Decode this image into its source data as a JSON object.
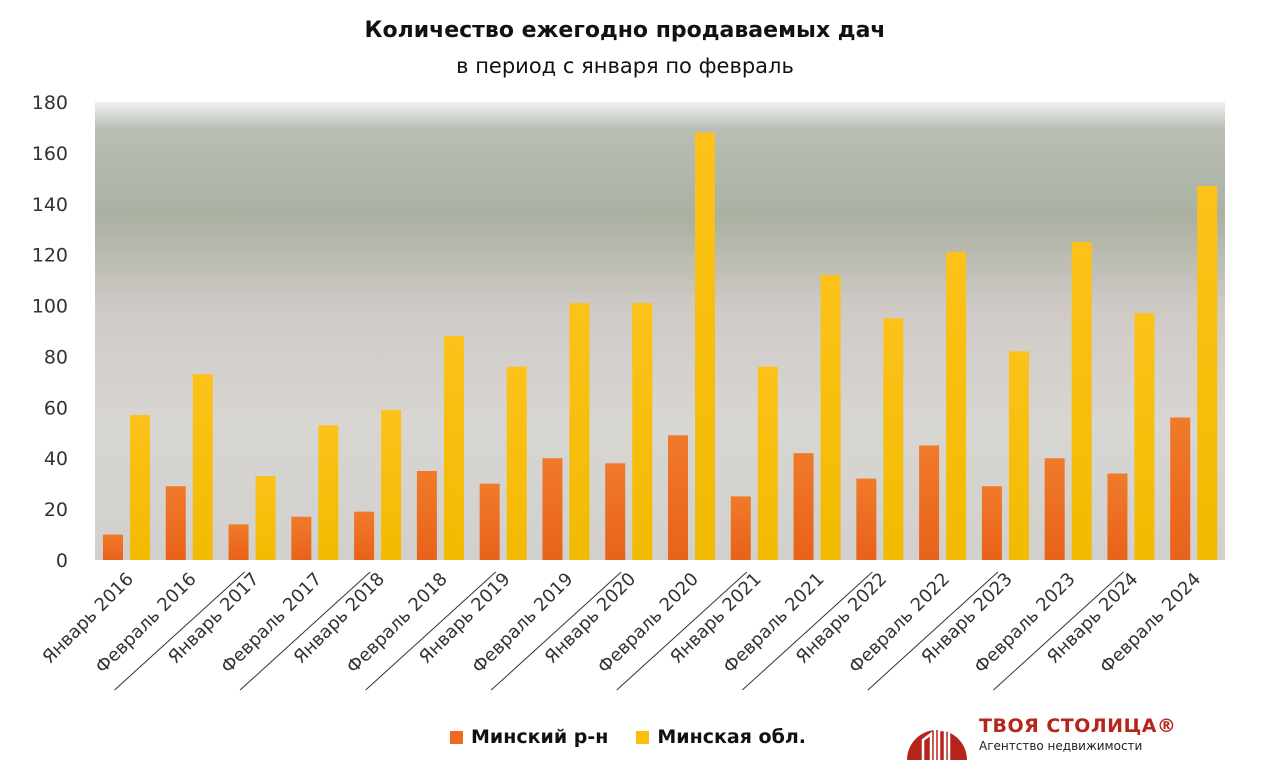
{
  "chart_data": {
    "type": "bar",
    "title": "Количество ежегодно продаваемых дач",
    "subtitle": "в период с января по февраль",
    "xlabel": "",
    "ylabel": "",
    "ylim": [
      0,
      180
    ],
    "yticks": [
      0,
      20,
      40,
      60,
      80,
      100,
      120,
      140,
      160,
      180
    ],
    "grid": false,
    "legend_position": "bottom",
    "categories": [
      "Январь 2016",
      "Февраль 2016",
      "Январь 2017",
      "Февраль 2017",
      "Январь 2018",
      "Февраль 2018",
      "Январь 2019",
      "Февраль 2019",
      "Январь 2020",
      "Февраль 2020",
      "Январь 2021",
      "Февраль 2021",
      "Январь 2022",
      "Февраль 2022",
      "Январь 2023",
      "Февраль 2023",
      "Январь 2024",
      "Февраль 2024"
    ],
    "series": [
      {
        "name": "Минский р-н",
        "color": "#ee6a1e",
        "values": [
          10,
          29,
          14,
          17,
          19,
          35,
          30,
          40,
          38,
          49,
          25,
          42,
          32,
          45,
          29,
          40,
          34,
          56
        ]
      },
      {
        "name": "Минская обл.",
        "color": "#fbbf0a",
        "values": [
          57,
          73,
          33,
          53,
          59,
          88,
          76,
          101,
          101,
          168,
          76,
          112,
          95,
          121,
          82,
          125,
          97,
          147
        ]
      }
    ]
  },
  "logo": {
    "name": "ТВОЯ СТОЛИЦА®",
    "subtitle": "Агентство недвижимости"
  }
}
